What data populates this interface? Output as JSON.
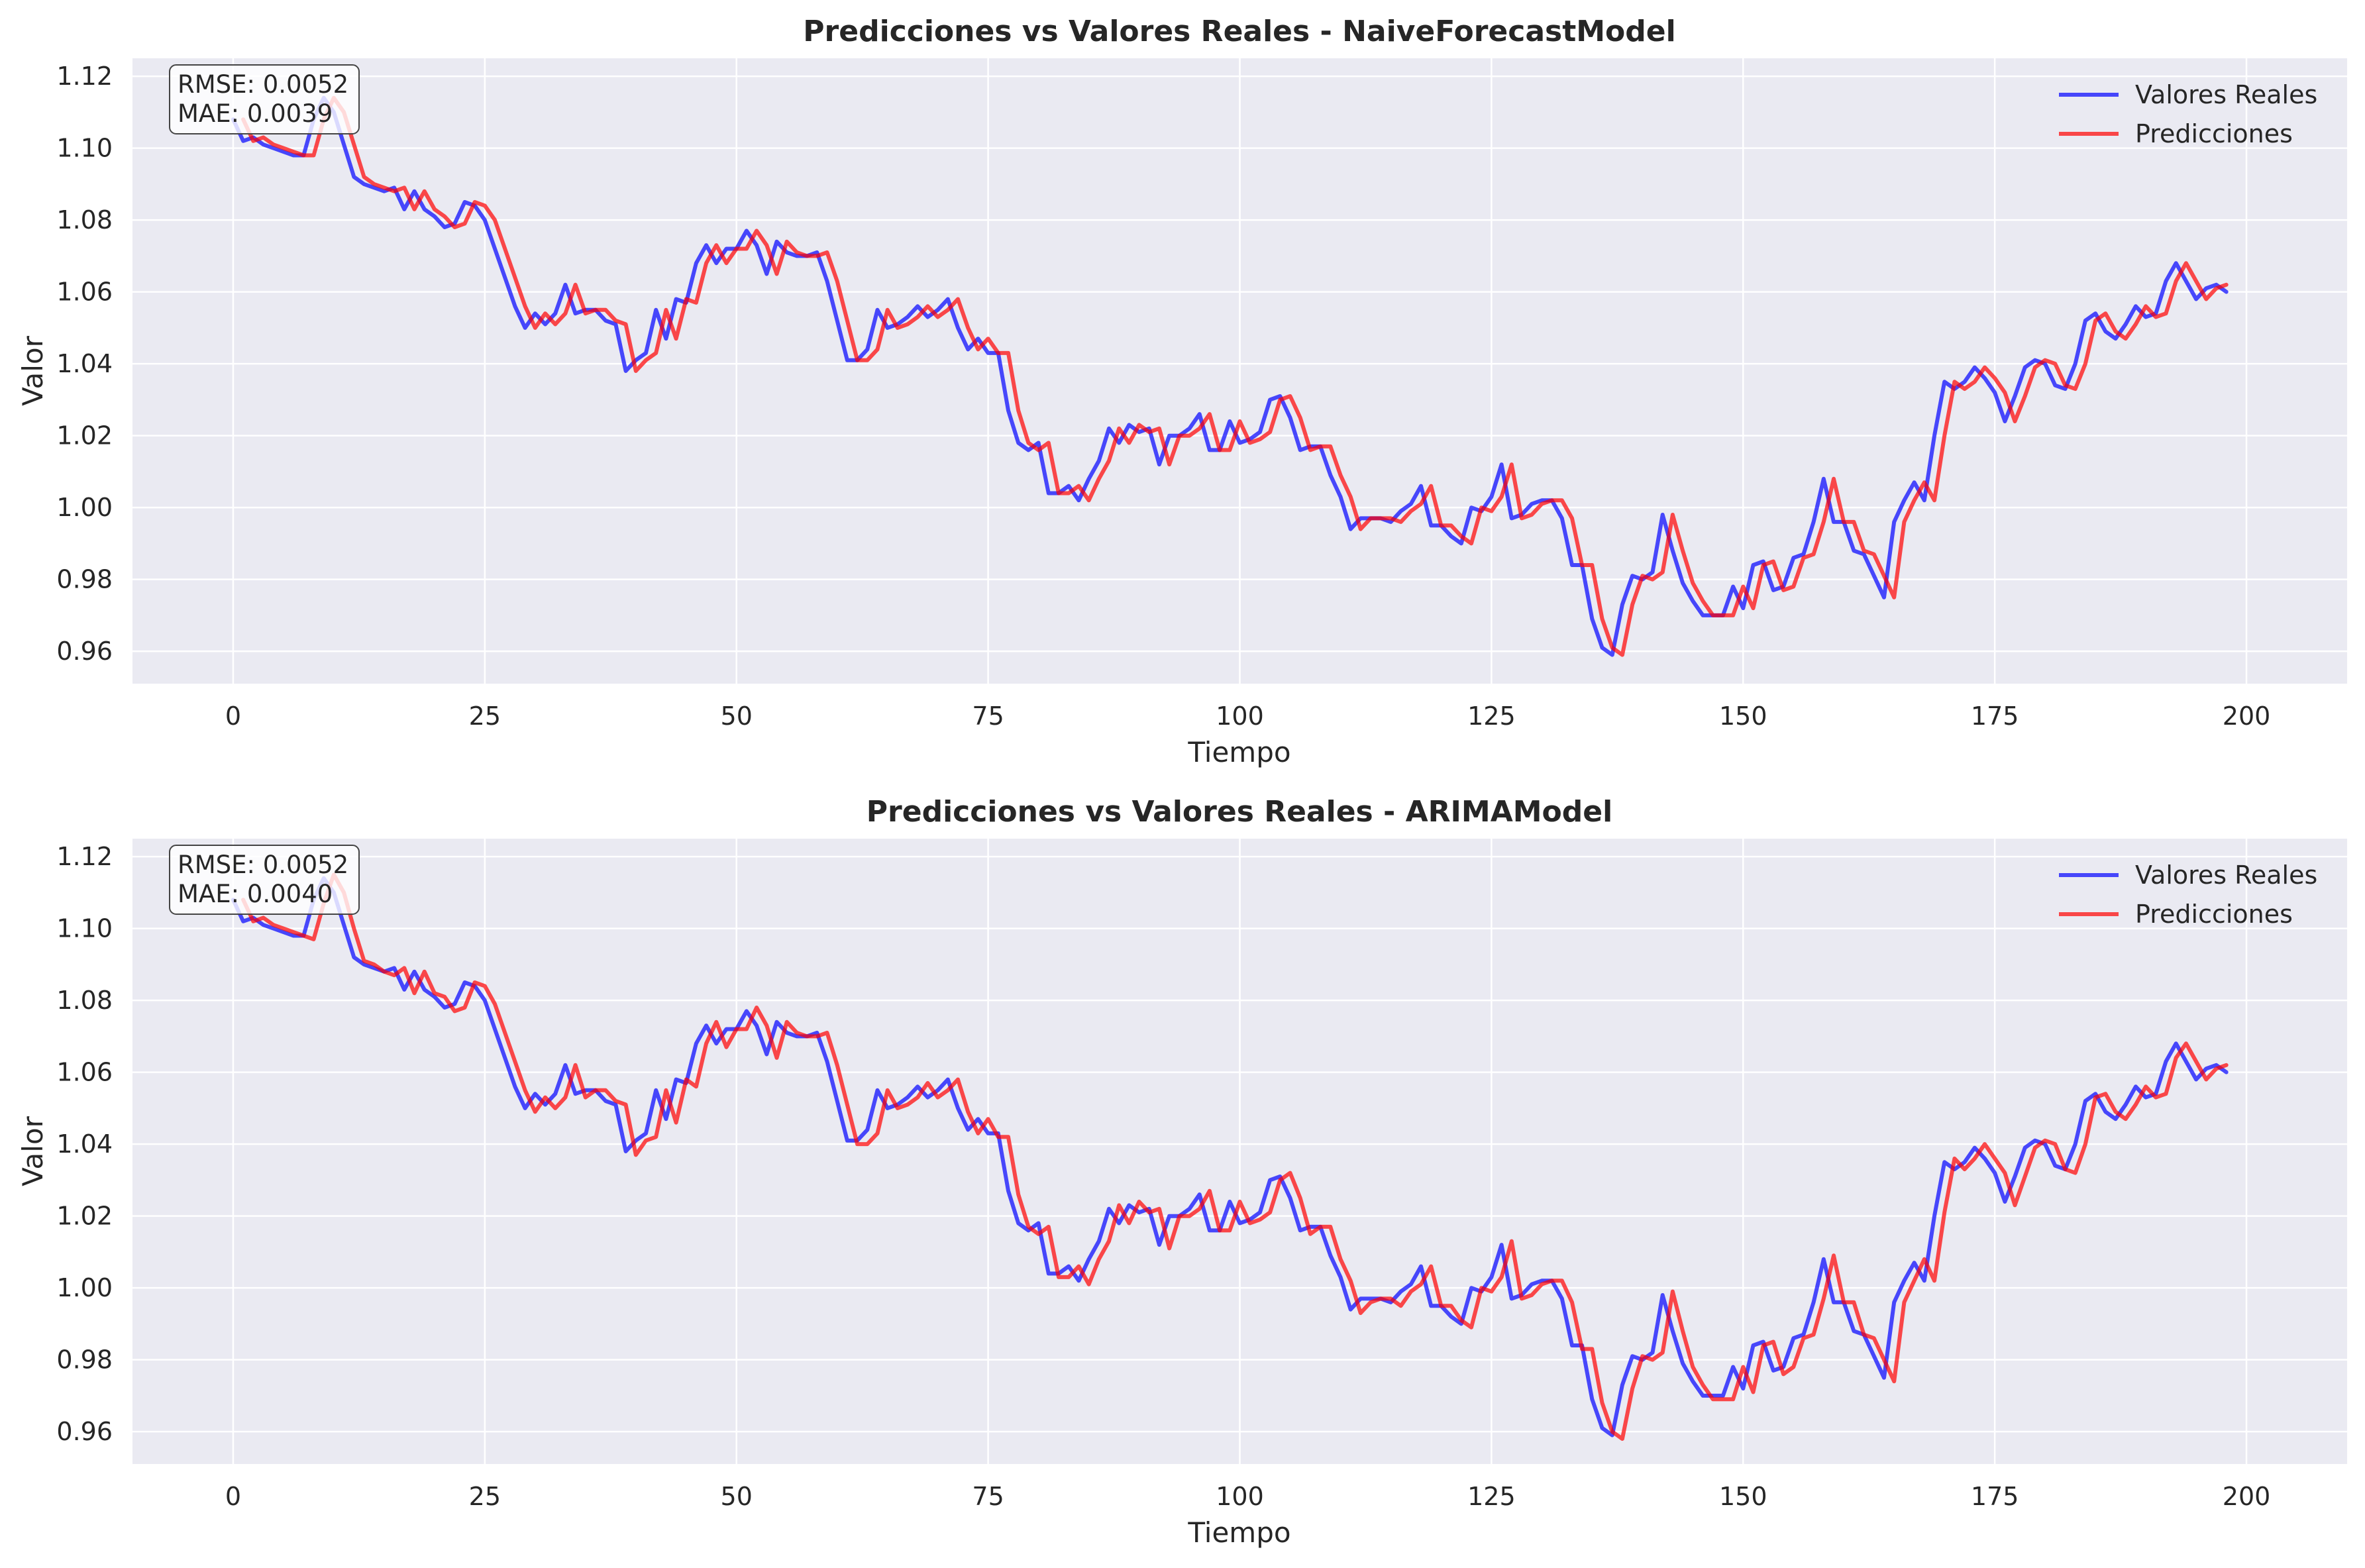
{
  "chart_data": [
    {
      "type": "line",
      "title": "Predicciones vs Valores Reales - NaiveForecastModel",
      "xlabel": "Tiempo",
      "ylabel": "Valor",
      "xlim": [
        -10,
        210
      ],
      "ylim": [
        0.951,
        1.125
      ],
      "xticks": [
        0,
        25,
        50,
        75,
        100,
        125,
        150,
        175,
        200
      ],
      "yticks": [
        0.96,
        0.98,
        1.0,
        1.02,
        1.04,
        1.06,
        1.08,
        1.1,
        1.12
      ],
      "ytick_labels": [
        "0.96",
        "0.98",
        "1.00",
        "1.02",
        "1.04",
        "1.06",
        "1.08",
        "1.10",
        "1.12"
      ],
      "grid": true,
      "legend_position": "top-right",
      "metrics": [
        "RMSE: 0.0052",
        "MAE: 0.0039"
      ],
      "series": [
        {
          "name": "Valores Reales",
          "color": "#0000ff",
          "x_start": 0,
          "values": [
            1.108,
            1.102,
            1.103,
            1.101,
            1.1,
            1.099,
            1.098,
            1.098,
            1.108,
            1.114,
            1.11,
            1.101,
            1.092,
            1.09,
            1.089,
            1.088,
            1.089,
            1.083,
            1.088,
            1.083,
            1.081,
            1.078,
            1.079,
            1.085,
            1.084,
            1.08,
            1.072,
            1.064,
            1.056,
            1.05,
            1.054,
            1.051,
            1.054,
            1.062,
            1.054,
            1.055,
            1.055,
            1.052,
            1.051,
            1.038,
            1.041,
            1.043,
            1.055,
            1.047,
            1.058,
            1.057,
            1.068,
            1.073,
            1.068,
            1.072,
            1.072,
            1.077,
            1.073,
            1.065,
            1.074,
            1.071,
            1.07,
            1.07,
            1.071,
            1.063,
            1.052,
            1.041,
            1.041,
            1.044,
            1.055,
            1.05,
            1.051,
            1.053,
            1.056,
            1.053,
            1.055,
            1.058,
            1.05,
            1.044,
            1.047,
            1.043,
            1.043,
            1.027,
            1.018,
            1.016,
            1.018,
            1.004,
            1.004,
            1.006,
            1.002,
            1.008,
            1.013,
            1.022,
            1.018,
            1.023,
            1.021,
            1.022,
            1.012,
            1.02,
            1.02,
            1.022,
            1.026,
            1.016,
            1.016,
            1.024,
            1.018,
            1.019,
            1.021,
            1.03,
            1.031,
            1.025,
            1.016,
            1.017,
            1.017,
            1.009,
            1.003,
            0.994,
            0.997,
            0.997,
            0.997,
            0.996,
            0.999,
            1.001,
            1.006,
            0.995,
            0.995,
            0.992,
            0.99,
            1.0,
            0.999,
            1.003,
            1.012,
            0.997,
            0.998,
            1.001,
            1.002,
            1.002,
            0.997,
            0.984,
            0.984,
            0.969,
            0.961,
            0.959,
            0.973,
            0.981,
            0.98,
            0.982,
            0.998,
            0.988,
            0.979,
            0.974,
            0.97,
            0.97,
            0.97,
            0.978,
            0.972,
            0.984,
            0.985,
            0.977,
            0.978,
            0.986,
            0.987,
            0.996,
            1.008,
            0.996,
            0.996,
            0.988,
            0.987,
            0.981,
            0.975,
            0.996,
            1.002,
            1.007,
            1.002,
            1.02,
            1.035,
            1.033,
            1.035,
            1.039,
            1.036,
            1.032,
            1.024,
            1.031,
            1.039,
            1.041,
            1.04,
            1.034,
            1.033,
            1.04,
            1.052,
            1.054,
            1.049,
            1.047,
            1.051,
            1.056,
            1.053,
            1.054,
            1.063,
            1.068,
            1.063,
            1.058,
            1.061,
            1.062,
            1.06
          ]
        },
        {
          "name": "Predicciones",
          "color": "#ff0000",
          "x_start": 1,
          "values": [
            1.108,
            1.102,
            1.103,
            1.101,
            1.1,
            1.099,
            1.098,
            1.098,
            1.108,
            1.114,
            1.11,
            1.101,
            1.092,
            1.09,
            1.089,
            1.088,
            1.089,
            1.083,
            1.088,
            1.083,
            1.081,
            1.078,
            1.079,
            1.085,
            1.084,
            1.08,
            1.072,
            1.064,
            1.056,
            1.05,
            1.054,
            1.051,
            1.054,
            1.062,
            1.054,
            1.055,
            1.055,
            1.052,
            1.051,
            1.038,
            1.041,
            1.043,
            1.055,
            1.047,
            1.058,
            1.057,
            1.068,
            1.073,
            1.068,
            1.072,
            1.072,
            1.077,
            1.073,
            1.065,
            1.074,
            1.071,
            1.07,
            1.07,
            1.071,
            1.063,
            1.052,
            1.041,
            1.041,
            1.044,
            1.055,
            1.05,
            1.051,
            1.053,
            1.056,
            1.053,
            1.055,
            1.058,
            1.05,
            1.044,
            1.047,
            1.043,
            1.043,
            1.027,
            1.018,
            1.016,
            1.018,
            1.004,
            1.004,
            1.006,
            1.002,
            1.008,
            1.013,
            1.022,
            1.018,
            1.023,
            1.021,
            1.022,
            1.012,
            1.02,
            1.02,
            1.022,
            1.026,
            1.016,
            1.016,
            1.024,
            1.018,
            1.019,
            1.021,
            1.03,
            1.031,
            1.025,
            1.016,
            1.017,
            1.017,
            1.009,
            1.003,
            0.994,
            0.997,
            0.997,
            0.997,
            0.996,
            0.999,
            1.001,
            1.006,
            0.995,
            0.995,
            0.992,
            0.99,
            1.0,
            0.999,
            1.003,
            1.012,
            0.997,
            0.998,
            1.001,
            1.002,
            1.002,
            0.997,
            0.984,
            0.984,
            0.969,
            0.961,
            0.959,
            0.973,
            0.981,
            0.98,
            0.982,
            0.998,
            0.988,
            0.979,
            0.974,
            0.97,
            0.97,
            0.97,
            0.978,
            0.972,
            0.984,
            0.985,
            0.977,
            0.978,
            0.986,
            0.987,
            0.996,
            1.008,
            0.996,
            0.996,
            0.988,
            0.987,
            0.981,
            0.975,
            0.996,
            1.002,
            1.007,
            1.002,
            1.02,
            1.035,
            1.033,
            1.035,
            1.039,
            1.036,
            1.032,
            1.024,
            1.031,
            1.039,
            1.041,
            1.04,
            1.034,
            1.033,
            1.04,
            1.052,
            1.054,
            1.049,
            1.047,
            1.051,
            1.056,
            1.053,
            1.054,
            1.063,
            1.068,
            1.063,
            1.058,
            1.061,
            1.062
          ]
        }
      ]
    },
    {
      "type": "line",
      "title": "Predicciones vs Valores Reales - ARIMAModel",
      "xlabel": "Tiempo",
      "ylabel": "Valor",
      "xlim": [
        -10,
        210
      ],
      "ylim": [
        0.951,
        1.125
      ],
      "xticks": [
        0,
        25,
        50,
        75,
        100,
        125,
        150,
        175,
        200
      ],
      "yticks": [
        0.96,
        0.98,
        1.0,
        1.02,
        1.04,
        1.06,
        1.08,
        1.1,
        1.12
      ],
      "ytick_labels": [
        "0.96",
        "0.98",
        "1.00",
        "1.02",
        "1.04",
        "1.06",
        "1.08",
        "1.10",
        "1.12"
      ],
      "grid": true,
      "legend_position": "top-right",
      "metrics": [
        "RMSE: 0.0052",
        "MAE: 0.0040"
      ],
      "series": [
        {
          "name": "Valores Reales",
          "color": "#0000ff",
          "x_start": 0,
          "values": [
            1.108,
            1.102,
            1.103,
            1.101,
            1.1,
            1.099,
            1.098,
            1.098,
            1.108,
            1.114,
            1.11,
            1.101,
            1.092,
            1.09,
            1.089,
            1.088,
            1.089,
            1.083,
            1.088,
            1.083,
            1.081,
            1.078,
            1.079,
            1.085,
            1.084,
            1.08,
            1.072,
            1.064,
            1.056,
            1.05,
            1.054,
            1.051,
            1.054,
            1.062,
            1.054,
            1.055,
            1.055,
            1.052,
            1.051,
            1.038,
            1.041,
            1.043,
            1.055,
            1.047,
            1.058,
            1.057,
            1.068,
            1.073,
            1.068,
            1.072,
            1.072,
            1.077,
            1.073,
            1.065,
            1.074,
            1.071,
            1.07,
            1.07,
            1.071,
            1.063,
            1.052,
            1.041,
            1.041,
            1.044,
            1.055,
            1.05,
            1.051,
            1.053,
            1.056,
            1.053,
            1.055,
            1.058,
            1.05,
            1.044,
            1.047,
            1.043,
            1.043,
            1.027,
            1.018,
            1.016,
            1.018,
            1.004,
            1.004,
            1.006,
            1.002,
            1.008,
            1.013,
            1.022,
            1.018,
            1.023,
            1.021,
            1.022,
            1.012,
            1.02,
            1.02,
            1.022,
            1.026,
            1.016,
            1.016,
            1.024,
            1.018,
            1.019,
            1.021,
            1.03,
            1.031,
            1.025,
            1.016,
            1.017,
            1.017,
            1.009,
            1.003,
            0.994,
            0.997,
            0.997,
            0.997,
            0.996,
            0.999,
            1.001,
            1.006,
            0.995,
            0.995,
            0.992,
            0.99,
            1.0,
            0.999,
            1.003,
            1.012,
            0.997,
            0.998,
            1.001,
            1.002,
            1.002,
            0.997,
            0.984,
            0.984,
            0.969,
            0.961,
            0.959,
            0.973,
            0.981,
            0.98,
            0.982,
            0.998,
            0.988,
            0.979,
            0.974,
            0.97,
            0.97,
            0.97,
            0.978,
            0.972,
            0.984,
            0.985,
            0.977,
            0.978,
            0.986,
            0.987,
            0.996,
            1.008,
            0.996,
            0.996,
            0.988,
            0.987,
            0.981,
            0.975,
            0.996,
            1.002,
            1.007,
            1.002,
            1.02,
            1.035,
            1.033,
            1.035,
            1.039,
            1.036,
            1.032,
            1.024,
            1.031,
            1.039,
            1.041,
            1.04,
            1.034,
            1.033,
            1.04,
            1.052,
            1.054,
            1.049,
            1.047,
            1.051,
            1.056,
            1.053,
            1.054,
            1.063,
            1.068,
            1.063,
            1.058,
            1.061,
            1.062,
            1.06
          ]
        },
        {
          "name": "Predicciones",
          "color": "#ff0000",
          "x_start": 1,
          "values": [
            1.108,
            1.102,
            1.103,
            1.101,
            1.1,
            1.099,
            1.098,
            1.097,
            1.107,
            1.115,
            1.11,
            1.1,
            1.091,
            1.09,
            1.088,
            1.087,
            1.089,
            1.082,
            1.088,
            1.082,
            1.081,
            1.077,
            1.078,
            1.085,
            1.084,
            1.079,
            1.071,
            1.063,
            1.055,
            1.049,
            1.053,
            1.05,
            1.053,
            1.062,
            1.053,
            1.055,
            1.055,
            1.052,
            1.051,
            1.037,
            1.041,
            1.042,
            1.055,
            1.046,
            1.058,
            1.056,
            1.068,
            1.074,
            1.067,
            1.072,
            1.072,
            1.078,
            1.073,
            1.064,
            1.074,
            1.071,
            1.07,
            1.07,
            1.071,
            1.062,
            1.051,
            1.04,
            1.04,
            1.043,
            1.055,
            1.05,
            1.051,
            1.053,
            1.057,
            1.053,
            1.055,
            1.058,
            1.049,
            1.043,
            1.047,
            1.042,
            1.042,
            1.026,
            1.017,
            1.015,
            1.017,
            1.003,
            1.003,
            1.006,
            1.001,
            1.008,
            1.013,
            1.023,
            1.018,
            1.024,
            1.021,
            1.022,
            1.011,
            1.02,
            1.02,
            1.022,
            1.027,
            1.016,
            1.016,
            1.024,
            1.018,
            1.019,
            1.021,
            1.03,
            1.032,
            1.025,
            1.015,
            1.017,
            1.017,
            1.008,
            1.002,
            0.993,
            0.996,
            0.997,
            0.997,
            0.995,
            0.999,
            1.001,
            1.006,
            0.995,
            0.995,
            0.991,
            0.989,
            1.0,
            0.999,
            1.003,
            1.013,
            0.997,
            0.998,
            1.001,
            1.002,
            1.002,
            0.996,
            0.983,
            0.983,
            0.968,
            0.96,
            0.958,
            0.972,
            0.981,
            0.98,
            0.982,
            0.999,
            0.988,
            0.978,
            0.973,
            0.969,
            0.969,
            0.969,
            0.978,
            0.971,
            0.984,
            0.985,
            0.976,
            0.978,
            0.986,
            0.987,
            0.997,
            1.009,
            0.996,
            0.996,
            0.987,
            0.986,
            0.98,
            0.974,
            0.996,
            1.002,
            1.008,
            1.002,
            1.021,
            1.036,
            1.033,
            1.036,
            1.04,
            1.036,
            1.032,
            1.023,
            1.031,
            1.039,
            1.041,
            1.04,
            1.033,
            1.032,
            1.04,
            1.053,
            1.054,
            1.049,
            1.047,
            1.051,
            1.056,
            1.053,
            1.054,
            1.064,
            1.068,
            1.063,
            1.058,
            1.061,
            1.062
          ]
        }
      ]
    }
  ],
  "colors": {
    "plot_background": "#eaeaf2",
    "grid": "#ffffff",
    "real": "#0000ff",
    "pred": "#ff0000",
    "text": "#262626"
  }
}
